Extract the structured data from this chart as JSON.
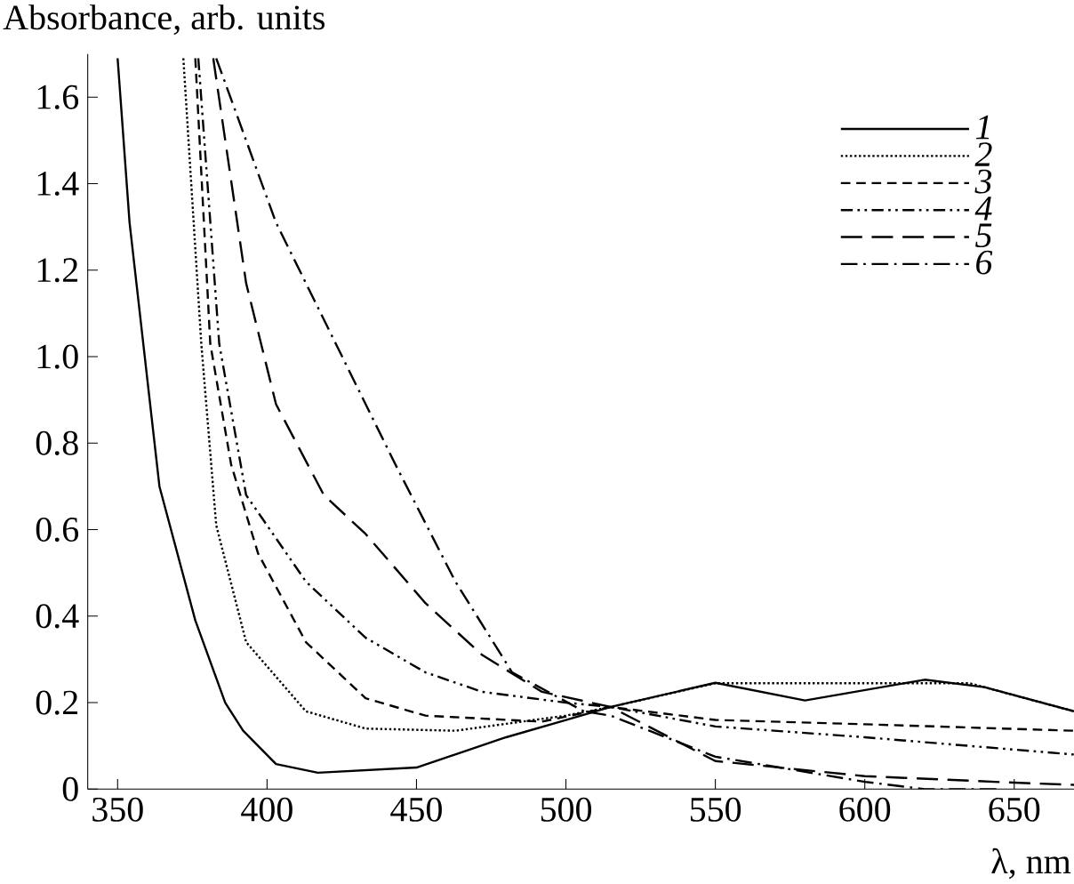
{
  "chart_data": {
    "type": "line",
    "xlabel": "λ, nm",
    "ylabel": "Absorbance, arb. units",
    "xlim": [
      340,
      670
    ],
    "ylim": [
      0,
      1.7
    ],
    "xticks": [
      350,
      400,
      450,
      500,
      550,
      600,
      650
    ],
    "yticks": [
      0,
      0.2,
      0.4,
      0.6,
      0.8,
      {
        "value": 1.0,
        "label": "1.0"
      },
      1.2,
      1.4,
      1.6
    ],
    "grid": false,
    "legend": "top right",
    "marker": "none",
    "series": [
      {
        "name": "1",
        "color": "#000000",
        "line_style": "solid",
        "x": [
          350,
          354,
          364,
          376,
          386,
          392,
          403,
          417,
          450,
          480,
          500,
          515,
          550,
          580,
          620,
          640,
          670
        ],
        "values": [
          1.69,
          1.31,
          0.7,
          0.39,
          0.2,
          0.135,
          0.058,
          0.038,
          0.05,
          0.12,
          0.16,
          0.19,
          0.246,
          0.205,
          0.253,
          0.236,
          0.18
        ]
      },
      {
        "name": "2",
        "color": "#000000",
        "line_style": "dotted",
        "x": [
          372,
          378,
          383,
          393,
          413,
          433,
          463,
          500,
          515,
          550,
          600,
          635,
          670
        ],
        "values": [
          1.69,
          1.03,
          0.61,
          0.34,
          0.18,
          0.14,
          0.135,
          0.17,
          0.19,
          0.245,
          0.245,
          0.245,
          0.18
        ]
      },
      {
        "name": "3",
        "color": "#000000",
        "line_style": "dashed",
        "x": [
          376,
          381,
          388,
          397,
          413,
          433,
          453,
          492,
          515,
          550,
          600,
          670
        ],
        "values": [
          1.69,
          1.03,
          0.75,
          0.545,
          0.34,
          0.21,
          0.17,
          0.156,
          0.19,
          0.16,
          0.15,
          0.135
        ]
      },
      {
        "name": "4",
        "color": "#000000",
        "line_style": "dash dot dot",
        "x": [
          377,
          384,
          393,
          413,
          433,
          453,
          472,
          500,
          515,
          550,
          600,
          670
        ],
        "values": [
          1.69,
          1.03,
          0.68,
          0.48,
          0.35,
          0.27,
          0.225,
          0.2,
          0.19,
          0.145,
          0.12,
          0.08
        ]
      },
      {
        "name": "5",
        "color": "#000000",
        "line_style": "long dash",
        "x": [
          382,
          393,
          403,
          419,
          433,
          453,
          472,
          492,
          515,
          550,
          600,
          650,
          670
        ],
        "values": [
          1.69,
          1.17,
          0.89,
          0.68,
          0.59,
          0.43,
          0.31,
          0.225,
          0.19,
          0.065,
          0.03,
          0.015,
          0.01
        ]
      },
      {
        "name": "6",
        "color": "#000000",
        "line_style": "dash dot",
        "x": [
          383,
          403,
          423,
          443,
          463,
          482,
          506,
          515,
          550,
          600,
          620,
          645
        ],
        "values": [
          1.69,
          1.31,
          1.03,
          0.75,
          0.48,
          0.27,
          0.18,
          0.17,
          0.075,
          0.017,
          0.0,
          0.0
        ]
      }
    ]
  }
}
